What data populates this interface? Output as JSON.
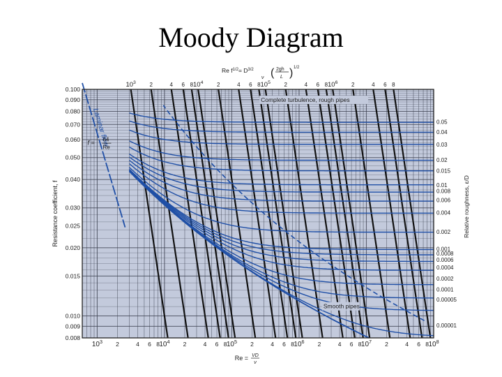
{
  "title": "Moody Diagram",
  "chart_data": {
    "type": "line",
    "title": "Moody Diagram",
    "x_scale": "log",
    "y_scale": "log",
    "xlim": [
      600,
      100000000
    ],
    "ylim": [
      0.008,
      0.1
    ],
    "grid": true,
    "bottom_axis": {
      "label_main": "Re =",
      "label_fraction_top": "VD",
      "label_fraction_bottom": "ν",
      "ticks": [
        {
          "value": 1000,
          "mantissa": "10",
          "exp": "3"
        },
        {
          "value": 2000,
          "mantissa": "2",
          "exp": ""
        },
        {
          "value": 4000,
          "mantissa": "4",
          "exp": ""
        },
        {
          "value": 6000,
          "mantissa": "6",
          "exp": ""
        },
        {
          "value": 8000,
          "mantissa": "8",
          "exp": ""
        },
        {
          "value": 10000,
          "mantissa": "10",
          "exp": "4"
        },
        {
          "value": 20000,
          "mantissa": "2",
          "exp": ""
        },
        {
          "value": 40000,
          "mantissa": "4",
          "exp": ""
        },
        {
          "value": 60000,
          "mantissa": "6",
          "exp": ""
        },
        {
          "value": 80000,
          "mantissa": "8",
          "exp": ""
        },
        {
          "value": 100000,
          "mantissa": "10",
          "exp": "5"
        },
        {
          "value": 200000,
          "mantissa": "2",
          "exp": ""
        },
        {
          "value": 400000,
          "mantissa": "4",
          "exp": ""
        },
        {
          "value": 600000,
          "mantissa": "6",
          "exp": ""
        },
        {
          "value": 800000,
          "mantissa": "8",
          "exp": ""
        },
        {
          "value": 1000000,
          "mantissa": "10",
          "exp": "6"
        },
        {
          "value": 2000000,
          "mantissa": "2",
          "exp": ""
        },
        {
          "value": 4000000,
          "mantissa": "4",
          "exp": ""
        },
        {
          "value": 6000000,
          "mantissa": "6",
          "exp": ""
        },
        {
          "value": 8000000,
          "mantissa": "8",
          "exp": ""
        },
        {
          "value": 10000000,
          "mantissa": "10",
          "exp": "7"
        },
        {
          "value": 20000000,
          "mantissa": "2",
          "exp": ""
        },
        {
          "value": 40000000,
          "mantissa": "4",
          "exp": ""
        },
        {
          "value": 60000000,
          "mantissa": "6",
          "exp": ""
        },
        {
          "value": 80000000,
          "mantissa": "8",
          "exp": ""
        },
        {
          "value": 100000000,
          "mantissa": "10",
          "exp": "8"
        }
      ]
    },
    "top_axis": {
      "label_main": "Re f",
      "label_exp": "1/2",
      "label_rhs": "= D",
      "label_rhs_exp": "3/2",
      "label_fraction_bottom": "ν",
      "label_paren_top": "2gh",
      "label_paren_top_sub": "L",
      "label_paren_bottom": "L",
      "label_paren_exp": "1/2",
      "ticks": [
        {
          "value": 1000,
          "mantissa": "10",
          "exp": "3"
        },
        {
          "value": 2000,
          "mantissa": "2",
          "exp": ""
        },
        {
          "value": 4000,
          "mantissa": "4",
          "exp": ""
        },
        {
          "value": 6000,
          "mantissa": "6",
          "exp": ""
        },
        {
          "value": 8000,
          "mantissa": "8",
          "exp": ""
        },
        {
          "value": 10000,
          "mantissa": "10",
          "exp": "4"
        },
        {
          "value": 20000,
          "mantissa": "2",
          "exp": ""
        },
        {
          "value": 40000,
          "mantissa": "4",
          "exp": ""
        },
        {
          "value": 60000,
          "mantissa": "6",
          "exp": ""
        },
        {
          "value": 80000,
          "mantissa": "8",
          "exp": ""
        },
        {
          "value": 100000,
          "mantissa": "10",
          "exp": "5"
        },
        {
          "value": 200000,
          "mantissa": "2",
          "exp": ""
        },
        {
          "value": 400000,
          "mantissa": "4",
          "exp": ""
        },
        {
          "value": 600000,
          "mantissa": "6",
          "exp": ""
        },
        {
          "value": 800000,
          "mantissa": "8",
          "exp": ""
        },
        {
          "value": 1000000,
          "mantissa": "10",
          "exp": "6"
        },
        {
          "value": 2000000,
          "mantissa": "2",
          "exp": ""
        },
        {
          "value": 4000000,
          "mantissa": "4",
          "exp": ""
        },
        {
          "value": 6000000,
          "mantissa": "6",
          "exp": ""
        },
        {
          "value": 8000000,
          "mantissa": "8",
          "exp": ""
        }
      ]
    },
    "left_axis": {
      "label": "Resistance coefficient, f",
      "ticks": [
        {
          "value": 0.1,
          "text": "0.100"
        },
        {
          "value": 0.09,
          "text": "0.090"
        },
        {
          "value": 0.08,
          "text": "0.080"
        },
        {
          "value": 0.07,
          "text": "0.070"
        },
        {
          "value": 0.06,
          "text": "0.060"
        },
        {
          "value": 0.05,
          "text": "0.050"
        },
        {
          "value": 0.04,
          "text": "0.040"
        },
        {
          "value": 0.03,
          "text": "0.030"
        },
        {
          "value": 0.025,
          "text": "0.025"
        },
        {
          "value": 0.02,
          "text": "0.020"
        },
        {
          "value": 0.015,
          "text": "0.015"
        },
        {
          "value": 0.01,
          "text": "0.010"
        },
        {
          "value": 0.009,
          "text": "0.009"
        },
        {
          "value": 0.008,
          "text": "0.008"
        }
      ]
    },
    "right_axis": {
      "label_main": "Relative roughness,",
      "label_symbol": "ε",
      "label_over": "D",
      "labels": [
        {
          "text": "0.05",
          "f": 0.0718
        },
        {
          "text": "0.04",
          "f": 0.0649
        },
        {
          "text": "0.03",
          "f": 0.0571
        },
        {
          "text": "0.02",
          "f": 0.0488
        },
        {
          "text": "0.015",
          "f": 0.0438
        },
        {
          "text": "0.01",
          "f": 0.0379
        },
        {
          "text": "0.008",
          "f": 0.0356
        },
        {
          "text": "0.006",
          "f": 0.0325
        },
        {
          "text": "0.004",
          "f": 0.0286
        },
        {
          "text": "0.002",
          "f": 0.0235
        },
        {
          "text": "0.001",
          "f": 0.0198
        },
        {
          "text": "0.0008",
          "f": 0.0189
        },
        {
          "text": "0.0006",
          "f": 0.0177
        },
        {
          "text": "0.0004",
          "f": 0.0164
        },
        {
          "text": "0.0002",
          "f": 0.0146
        },
        {
          "text": "0.0001",
          "f": 0.0131
        },
        {
          "text": "0.00005",
          "f": 0.0118
        },
        {
          "text": "0.00001",
          "f": 0.0091
        }
      ]
    },
    "roughness_values": [
      0.05,
      0.04,
      0.03,
      0.02,
      0.015,
      0.01,
      0.008,
      0.006,
      0.004,
      0.002,
      0.001,
      0.0008,
      0.0006,
      0.0004,
      0.0002,
      0.0001,
      5e-05,
      1e-05
    ],
    "laminar": {
      "text_a": "Laminar flow",
      "text_b": "f =",
      "num": "64",
      "den": "Re",
      "re_range": [
        600,
        2600
      ]
    },
    "annotations": {
      "rough_region": "Complete turbulence, rough pipes",
      "smooth": "Smooth pipes"
    },
    "colors": {
      "background": "#c3cadc",
      "grid": "#3a3f4e",
      "curve": "#1f4fa6",
      "diagonal": "#111111",
      "text": "#1b1b1b"
    }
  }
}
